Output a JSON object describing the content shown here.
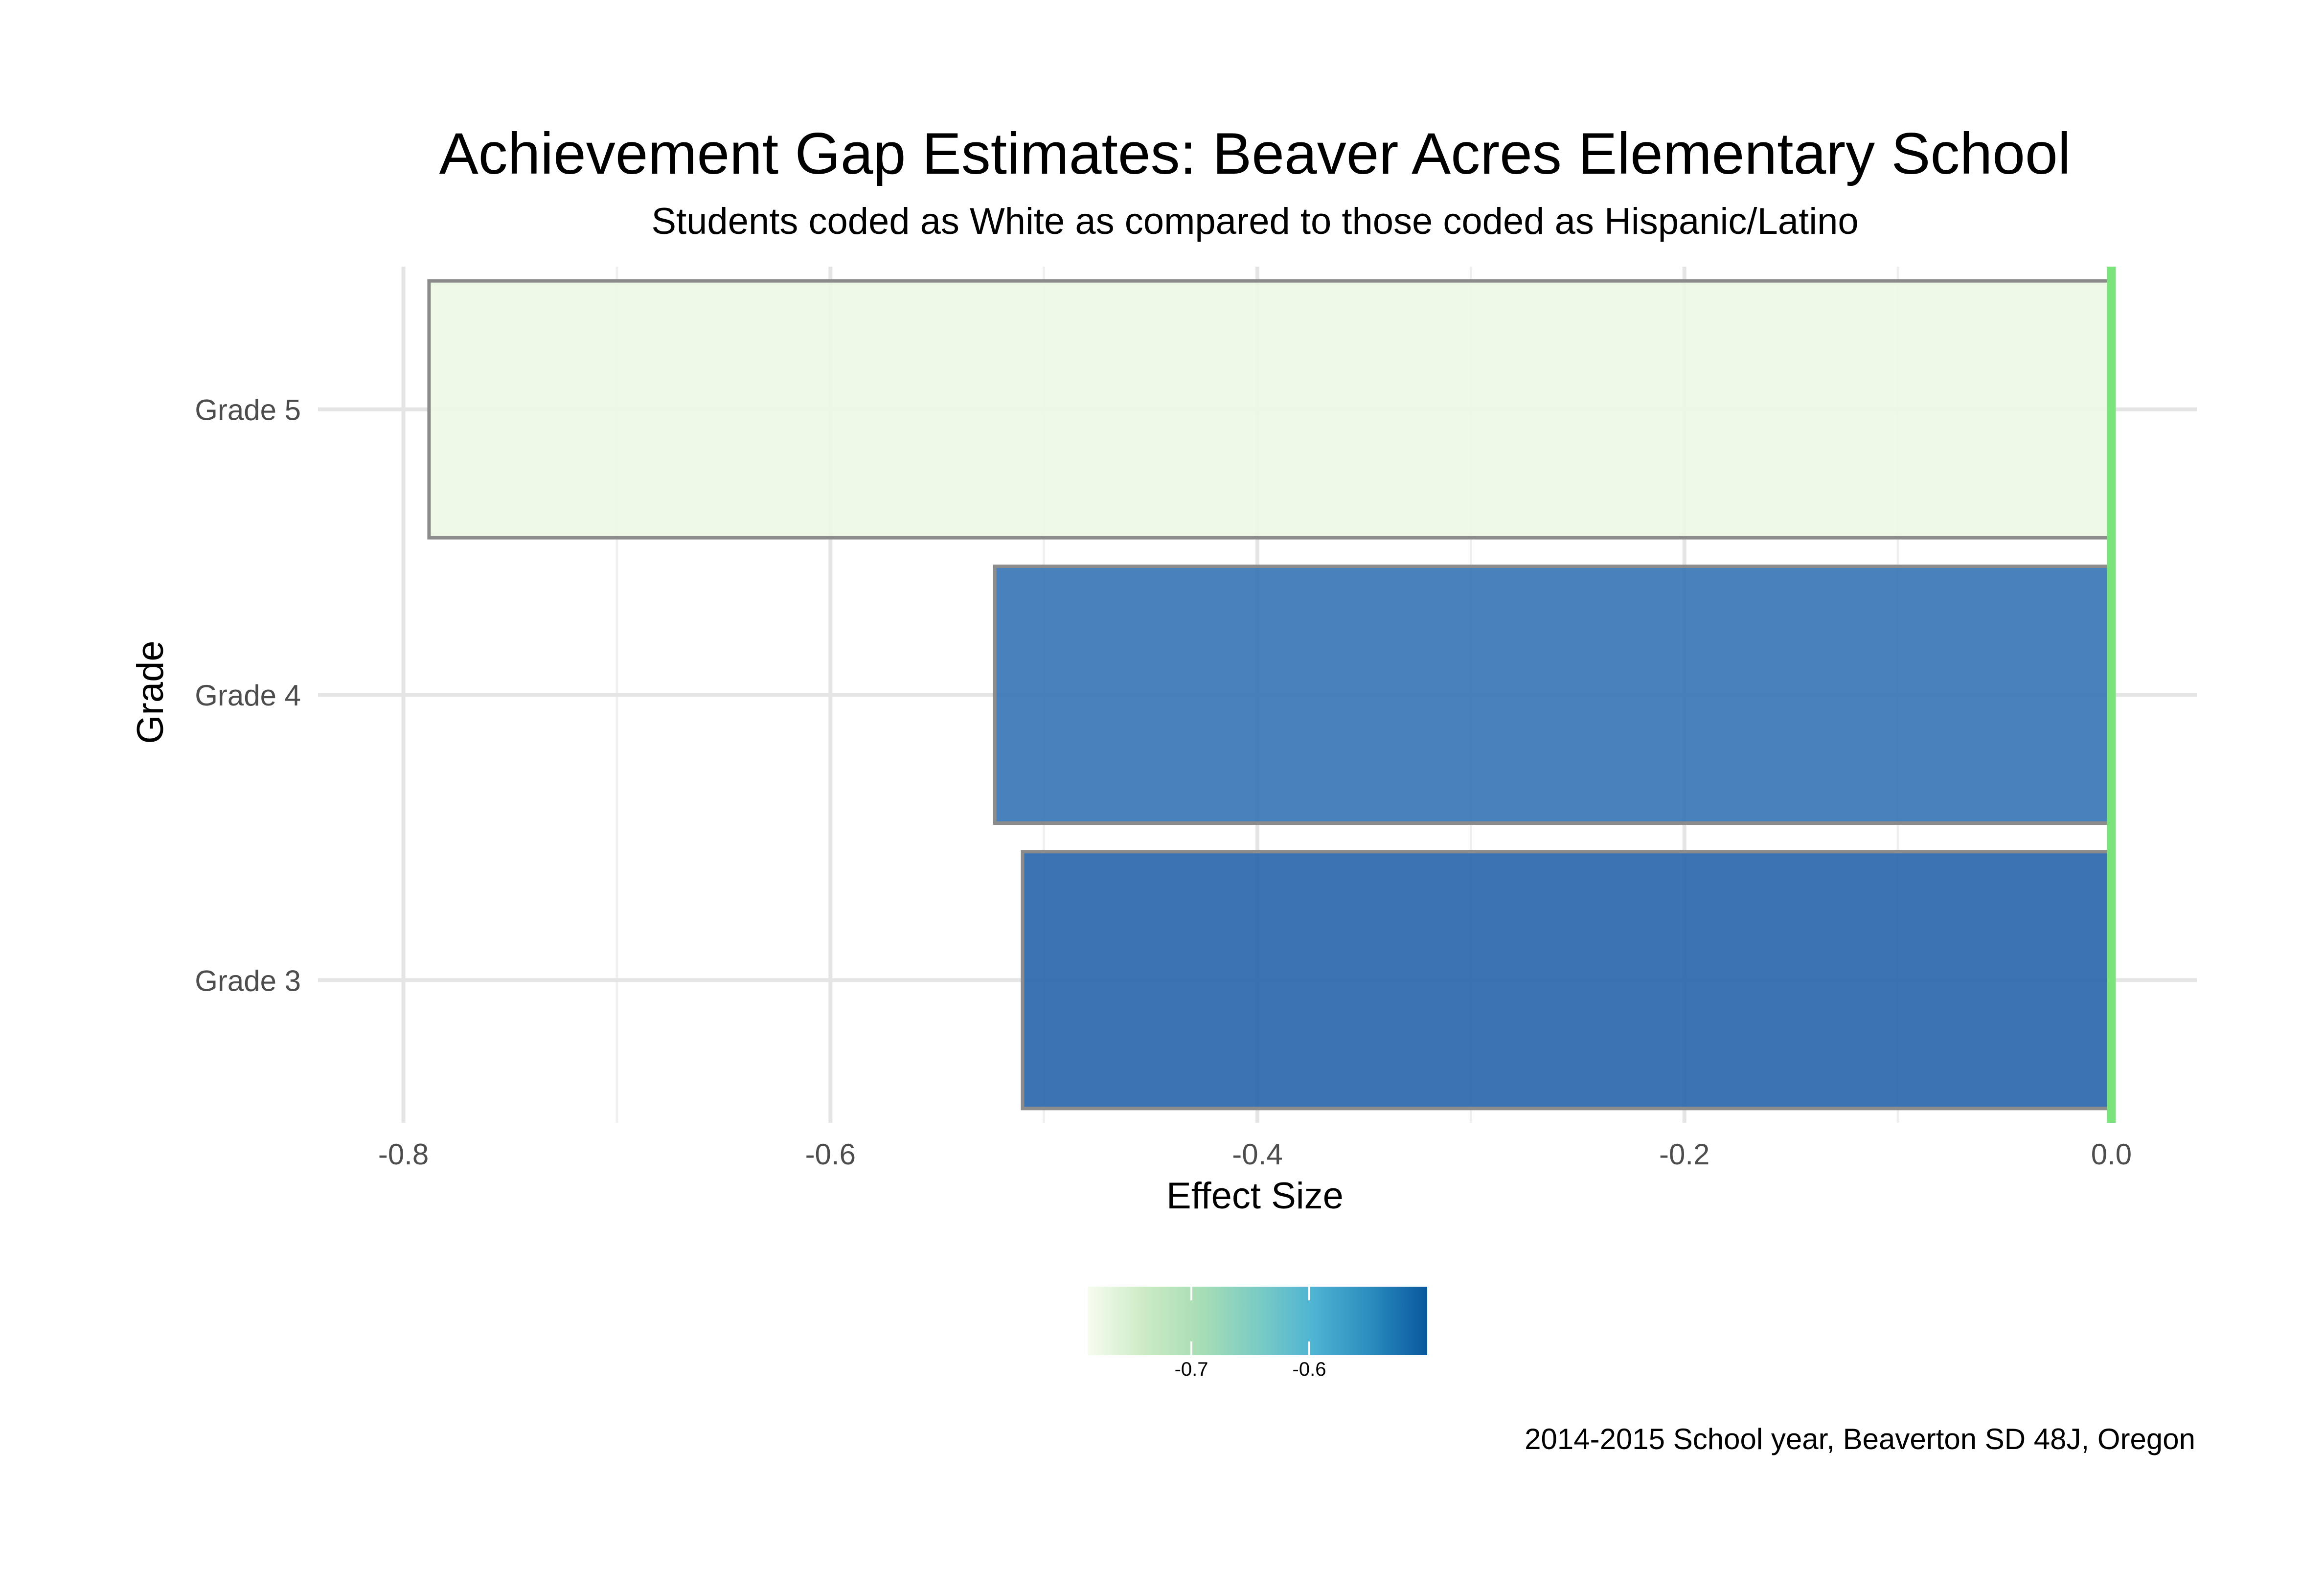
{
  "chart_data": {
    "type": "bar",
    "orientation": "horizontal",
    "title": "Achievement Gap Estimates: Beaver Acres Elementary School",
    "subtitle": "Students coded as White as compared to those coded as Hispanic/Latino",
    "xlabel": "Effect Size",
    "ylabel": "Grade",
    "caption": "2014-2015 School year, Beaverton SD 48J, Oregon",
    "categories": [
      "Grade 3",
      "Grade 4",
      "Grade 5"
    ],
    "values": [
      -0.51,
      -0.523,
      -0.788
    ],
    "bar_colors": [
      "#2b67ab",
      "#3a76b6",
      "#eef8e6"
    ],
    "bar_border_color": "#8c8c8c",
    "xlim": [
      -0.84,
      0.04
    ],
    "xticks": [
      -0.8,
      -0.6,
      -0.4,
      -0.2,
      0.0
    ],
    "xtick_labels": [
      "-0.8",
      "-0.6",
      "-0.4",
      "-0.2",
      "0.0"
    ],
    "reference_line": {
      "x": 0.0,
      "color": "#7be37b"
    },
    "grid": true,
    "legend": {
      "type": "colorbar",
      "placement": "bottom",
      "colors": [
        "#f7fcf0",
        "#ccebc5",
        "#a8ddb5",
        "#7bccc4",
        "#4eb3d3",
        "#2b8cbe",
        "#08589e"
      ],
      "range": [
        -0.788,
        -0.5
      ],
      "ticks": [
        -0.7,
        -0.6
      ],
      "tick_labels": [
        "-0.7",
        "-0.6"
      ]
    }
  }
}
